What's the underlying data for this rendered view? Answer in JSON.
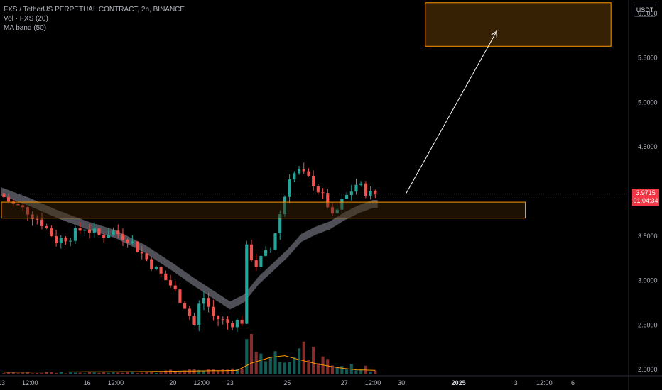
{
  "legend": {
    "symbol": "FXS / TetherUS PERPETUAL CONTRACT, 2h, BINANCE",
    "volume": "Vol · FXS (20)",
    "ma_band": "MA band (50)"
  },
  "currency": "USDT",
  "last_price": {
    "value": "3.9715",
    "countdown": "01:04:34"
  },
  "colors": {
    "up": "#26a69a",
    "down": "#ef5350",
    "zone_stroke": "#ff9800",
    "zone_fill": "#3d2505",
    "band": "#5d5e66",
    "vol_ma": "#ff9800",
    "price_tag": "#f23645"
  },
  "chart_data": {
    "type": "candlestick",
    "interval": "2h",
    "y_axis": {
      "ticks": [
        2.0,
        2.5,
        3.0,
        3.5,
        4.0,
        4.5,
        5.0,
        5.5,
        6.0
      ],
      "tick_labels": [
        "2.0000",
        "2.5000",
        "3.0000",
        "3.5000",
        "4.0000",
        "4.5000",
        "5.0000",
        "5.5000",
        "6.0000"
      ],
      "range": [
        1.93,
        6.15
      ]
    },
    "x_axis": {
      "ticks": [
        {
          "label": "13",
          "x": 0
        },
        {
          "label": "12:00",
          "x": 6
        },
        {
          "label": "16",
          "x": 18
        },
        {
          "label": "12:00",
          "x": 24
        },
        {
          "label": "20",
          "x": 36
        },
        {
          "label": "12:00",
          "x": 42
        },
        {
          "label": "23",
          "x": 48
        },
        {
          "label": "25",
          "x": 60
        },
        {
          "label": "27",
          "x": 72
        },
        {
          "label": "12:00",
          "x": 78
        },
        {
          "label": "30",
          "x": 84
        },
        {
          "label": "2025",
          "x": 96,
          "bold": true
        },
        {
          "label": "3",
          "x": 108
        },
        {
          "label": "12:00",
          "x": 114
        },
        {
          "label": "6",
          "x": 120
        }
      ],
      "range": [
        0,
        132
      ]
    },
    "price_keys": [
      [
        0,
        3.98
      ],
      [
        3,
        3.85
      ],
      [
        6,
        3.78
      ],
      [
        9,
        3.65
      ],
      [
        12,
        3.45
      ],
      [
        15,
        3.5
      ],
      [
        18,
        3.6
      ],
      [
        21,
        3.5
      ],
      [
        24,
        3.55
      ],
      [
        27,
        3.48
      ],
      [
        30,
        3.3
      ],
      [
        33,
        3.12
      ],
      [
        36,
        2.95
      ],
      [
        39,
        2.72
      ],
      [
        41,
        2.5
      ],
      [
        42,
        2.72
      ],
      [
        43,
        2.81
      ],
      [
        45,
        2.6
      ],
      [
        48,
        2.52
      ],
      [
        51,
        2.55
      ],
      [
        52,
        3.35
      ],
      [
        54,
        3.18
      ],
      [
        57,
        3.35
      ],
      [
        60,
        3.95
      ],
      [
        61,
        4.18
      ],
      [
        63,
        4.22
      ],
      [
        66,
        4.1
      ],
      [
        69,
        3.85
      ],
      [
        70,
        3.7
      ],
      [
        72,
        3.88
      ],
      [
        75,
        4.08
      ],
      [
        78,
        3.97
      ]
    ],
    "band_keys": [
      [
        0,
        4.0
      ],
      [
        6,
        3.88
      ],
      [
        12,
        3.74
      ],
      [
        18,
        3.62
      ],
      [
        24,
        3.52
      ],
      [
        30,
        3.36
      ],
      [
        36,
        3.15
      ],
      [
        40,
        3.0
      ],
      [
        44,
        2.86
      ],
      [
        48,
        2.72
      ],
      [
        51,
        2.8
      ],
      [
        54,
        3.0
      ],
      [
        57,
        3.15
      ],
      [
        60,
        3.3
      ],
      [
        63,
        3.48
      ],
      [
        66,
        3.56
      ],
      [
        69,
        3.62
      ],
      [
        72,
        3.72
      ],
      [
        75,
        3.8
      ],
      [
        78,
        3.86
      ]
    ],
    "band_half_width": 0.045,
    "volume_keys": [
      [
        0,
        0.03
      ],
      [
        24,
        0.035
      ],
      [
        36,
        0.06
      ],
      [
        48,
        0.07
      ],
      [
        50,
        0.2
      ],
      [
        51,
        0.7
      ],
      [
        53,
        0.45
      ],
      [
        56,
        0.3
      ],
      [
        60,
        0.42
      ],
      [
        63,
        0.4
      ],
      [
        66,
        0.3
      ],
      [
        70,
        0.15
      ],
      [
        74,
        0.12
      ],
      [
        79,
        0.08
      ]
    ],
    "volume_ma_keys": [
      [
        0,
        0.04
      ],
      [
        30,
        0.05
      ],
      [
        49,
        0.07
      ],
      [
        52,
        0.2
      ],
      [
        56,
        0.3
      ],
      [
        59,
        0.33
      ],
      [
        62,
        0.26
      ],
      [
        66,
        0.18
      ],
      [
        70,
        0.12
      ],
      [
        74,
        0.08
      ],
      [
        79,
        0.07
      ]
    ],
    "candles_count": 79,
    "zones": [
      {
        "name": "support-zone",
        "y0": 3.7,
        "y1": 3.88,
        "x0": 0,
        "x1": 110
      },
      {
        "name": "target-zone",
        "y0": 5.63,
        "y1": 6.12,
        "x0": 89,
        "x1": 128
      }
    ],
    "arrow": {
      "from": [
        85,
        3.98
      ],
      "to": [
        104,
        5.8
      ]
    },
    "last_price_line": 3.9715
  }
}
